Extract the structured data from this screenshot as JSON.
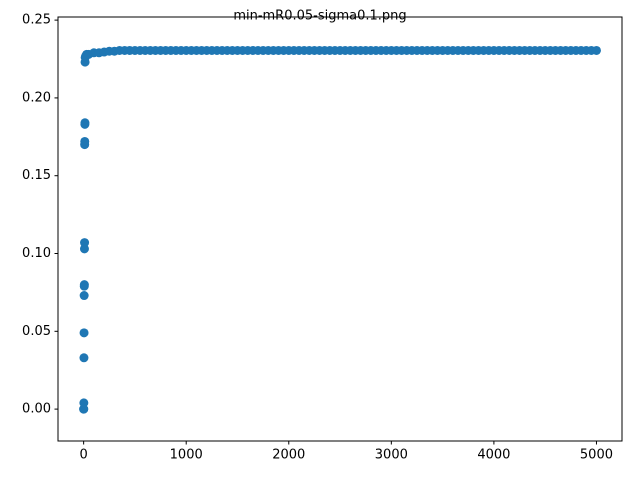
{
  "chart_data": {
    "type": "scatter",
    "title": "min-mR0.05-sigma0.1.png",
    "color": "#1f77b4",
    "x": [
      0,
      1,
      2,
      3,
      4,
      5,
      6,
      7,
      8,
      9,
      10,
      11,
      12,
      13,
      14,
      15,
      20,
      30,
      50,
      100,
      150,
      200,
      250,
      300,
      350,
      400,
      450,
      500,
      550,
      600,
      650,
      700,
      750,
      800,
      850,
      900,
      950,
      1000,
      1050,
      1100,
      1150,
      1200,
      1250,
      1300,
      1350,
      1400,
      1450,
      1500,
      1550,
      1600,
      1650,
      1700,
      1750,
      1800,
      1850,
      1900,
      1950,
      2000,
      2050,
      2100,
      2150,
      2200,
      2250,
      2300,
      2350,
      2400,
      2450,
      2500,
      2550,
      2600,
      2650,
      2700,
      2750,
      2800,
      2850,
      2900,
      2950,
      3000,
      3050,
      3100,
      3150,
      3200,
      3250,
      3300,
      3350,
      3400,
      3450,
      3500,
      3550,
      3600,
      3650,
      3700,
      3750,
      3800,
      3850,
      3900,
      3950,
      4000,
      4050,
      4100,
      4150,
      4200,
      4250,
      4300,
      4350,
      4400,
      4450,
      4500,
      4550,
      4600,
      4650,
      4700,
      4750,
      4800,
      4850,
      4900,
      4950,
      5000
    ],
    "values": [
      0,
      0,
      0.004,
      0.033,
      0.049,
      0.073,
      0.079,
      0.08,
      0.103,
      0.107,
      0.17,
      0.172,
      0.183,
      0.184,
      0.223,
      0.226,
      0.227,
      0.228,
      0.228,
      0.229,
      0.229,
      0.2295,
      0.23,
      0.23,
      0.2305,
      0.2305,
      0.2305,
      0.2305,
      0.2305,
      0.2305,
      0.2305,
      0.2305,
      0.2305,
      0.2305,
      0.2305,
      0.2305,
      0.2305,
      0.2305,
      0.2305,
      0.2305,
      0.2305,
      0.2305,
      0.2305,
      0.2305,
      0.2305,
      0.2305,
      0.2305,
      0.2305,
      0.2305,
      0.2305,
      0.2305,
      0.2305,
      0.2305,
      0.2305,
      0.2305,
      0.2305,
      0.2305,
      0.2305,
      0.2305,
      0.2305,
      0.2305,
      0.2305,
      0.2305,
      0.2305,
      0.2305,
      0.2305,
      0.2305,
      0.2305,
      0.2305,
      0.2305,
      0.2305,
      0.2305,
      0.2305,
      0.2305,
      0.2305,
      0.2305,
      0.2305,
      0.2305,
      0.2305,
      0.2305,
      0.2305,
      0.2305,
      0.2305,
      0.2305,
      0.2305,
      0.2305,
      0.2305,
      0.2305,
      0.2305,
      0.2305,
      0.2305,
      0.2305,
      0.2305,
      0.2305,
      0.2305,
      0.2305,
      0.2305,
      0.2305,
      0.2305,
      0.2305,
      0.2305,
      0.2305,
      0.2305,
      0.2305,
      0.2305,
      0.2305,
      0.2305,
      0.2305,
      0.2305,
      0.2305,
      0.2305,
      0.2305,
      0.2305,
      0.2305,
      0.2305,
      0.2305,
      0.2305,
      0.2305
    ],
    "xlim": [
      -250,
      5249
    ],
    "ylim": [
      -0.0205,
      0.252
    ],
    "xticks": [
      0,
      1000,
      2000,
      3000,
      4000,
      5000
    ],
    "yticks": [
      {
        "value": 0,
        "label": "0.00"
      },
      {
        "value": 0.05,
        "label": "0.05"
      },
      {
        "value": 0.1,
        "label": "0.10"
      },
      {
        "value": 0.15,
        "label": "0.15"
      },
      {
        "value": 0.2,
        "label": "0.20"
      },
      {
        "value": 0.25,
        "label": "0.25"
      }
    ],
    "grid": false
  }
}
